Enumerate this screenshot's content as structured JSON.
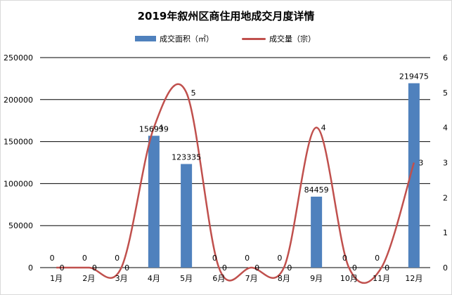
{
  "chart_data": {
    "type": "bar",
    "title": "2019年叙州区商住用地成交月度详情",
    "categories": [
      "1月",
      "2月",
      "3月",
      "4月",
      "5月",
      "6月",
      "7月",
      "8月",
      "9月",
      "10月",
      "11月",
      "12月"
    ],
    "series": [
      {
        "name": "成交面积（㎡）",
        "type": "bar",
        "axis": "left",
        "color": "#4f81bd",
        "values": [
          0,
          0,
          0,
          156939,
          123335,
          0,
          0,
          0,
          84459,
          0,
          0,
          219475
        ],
        "labels": [
          "0",
          "0",
          "0",
          "156939",
          "123335",
          "0",
          "0",
          "0",
          "84459",
          "0",
          "0",
          "219475"
        ]
      },
      {
        "name": "成交量（宗）",
        "type": "line",
        "axis": "right",
        "color": "#c0504d",
        "values": [
          0,
          0,
          0,
          4,
          5,
          0,
          0,
          0,
          4,
          0,
          0,
          3
        ],
        "labels": [
          "0",
          "0",
          "0",
          "4",
          "5",
          "0",
          "0",
          "0",
          "4",
          "0",
          "0",
          "3"
        ]
      }
    ],
    "y_left": {
      "min": 0,
      "max": 250000,
      "ticks": [
        "0",
        "50000",
        "100000",
        "150000",
        "200000",
        "250000"
      ]
    },
    "y_right": {
      "min": 0,
      "max": 6,
      "ticks": [
        "0",
        "1",
        "2",
        "3",
        "4",
        "5",
        "6"
      ]
    },
    "grid": true,
    "legend": "top-center"
  }
}
